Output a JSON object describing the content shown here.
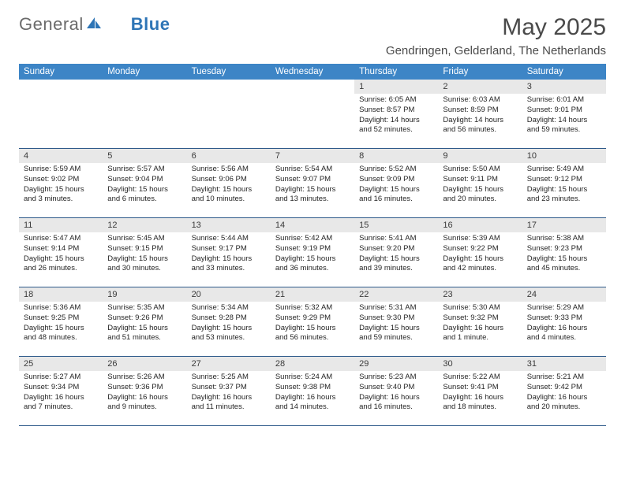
{
  "brand": {
    "part1": "General",
    "part2": "Blue",
    "logo_color": "#2e75b6"
  },
  "title": "May 2025",
  "location": "Gendringen, Gelderland, The Netherlands",
  "colors": {
    "header_bg": "#3d85c6",
    "header_text": "#ffffff",
    "daynum_bg": "#e8e8e8",
    "border": "#2e5a8a",
    "text": "#252525"
  },
  "weekdays": [
    "Sunday",
    "Monday",
    "Tuesday",
    "Wednesday",
    "Thursday",
    "Friday",
    "Saturday"
  ],
  "weeks": [
    [
      null,
      null,
      null,
      null,
      {
        "n": "1",
        "sr": "6:05 AM",
        "ss": "8:57 PM",
        "dl": "14 hours and 52 minutes."
      },
      {
        "n": "2",
        "sr": "6:03 AM",
        "ss": "8:59 PM",
        "dl": "14 hours and 56 minutes."
      },
      {
        "n": "3",
        "sr": "6:01 AM",
        "ss": "9:01 PM",
        "dl": "14 hours and 59 minutes."
      }
    ],
    [
      {
        "n": "4",
        "sr": "5:59 AM",
        "ss": "9:02 PM",
        "dl": "15 hours and 3 minutes."
      },
      {
        "n": "5",
        "sr": "5:57 AM",
        "ss": "9:04 PM",
        "dl": "15 hours and 6 minutes."
      },
      {
        "n": "6",
        "sr": "5:56 AM",
        "ss": "9:06 PM",
        "dl": "15 hours and 10 minutes."
      },
      {
        "n": "7",
        "sr": "5:54 AM",
        "ss": "9:07 PM",
        "dl": "15 hours and 13 minutes."
      },
      {
        "n": "8",
        "sr": "5:52 AM",
        "ss": "9:09 PM",
        "dl": "15 hours and 16 minutes."
      },
      {
        "n": "9",
        "sr": "5:50 AM",
        "ss": "9:11 PM",
        "dl": "15 hours and 20 minutes."
      },
      {
        "n": "10",
        "sr": "5:49 AM",
        "ss": "9:12 PM",
        "dl": "15 hours and 23 minutes."
      }
    ],
    [
      {
        "n": "11",
        "sr": "5:47 AM",
        "ss": "9:14 PM",
        "dl": "15 hours and 26 minutes."
      },
      {
        "n": "12",
        "sr": "5:45 AM",
        "ss": "9:15 PM",
        "dl": "15 hours and 30 minutes."
      },
      {
        "n": "13",
        "sr": "5:44 AM",
        "ss": "9:17 PM",
        "dl": "15 hours and 33 minutes."
      },
      {
        "n": "14",
        "sr": "5:42 AM",
        "ss": "9:19 PM",
        "dl": "15 hours and 36 minutes."
      },
      {
        "n": "15",
        "sr": "5:41 AM",
        "ss": "9:20 PM",
        "dl": "15 hours and 39 minutes."
      },
      {
        "n": "16",
        "sr": "5:39 AM",
        "ss": "9:22 PM",
        "dl": "15 hours and 42 minutes."
      },
      {
        "n": "17",
        "sr": "5:38 AM",
        "ss": "9:23 PM",
        "dl": "15 hours and 45 minutes."
      }
    ],
    [
      {
        "n": "18",
        "sr": "5:36 AM",
        "ss": "9:25 PM",
        "dl": "15 hours and 48 minutes."
      },
      {
        "n": "19",
        "sr": "5:35 AM",
        "ss": "9:26 PM",
        "dl": "15 hours and 51 minutes."
      },
      {
        "n": "20",
        "sr": "5:34 AM",
        "ss": "9:28 PM",
        "dl": "15 hours and 53 minutes."
      },
      {
        "n": "21",
        "sr": "5:32 AM",
        "ss": "9:29 PM",
        "dl": "15 hours and 56 minutes."
      },
      {
        "n": "22",
        "sr": "5:31 AM",
        "ss": "9:30 PM",
        "dl": "15 hours and 59 minutes."
      },
      {
        "n": "23",
        "sr": "5:30 AM",
        "ss": "9:32 PM",
        "dl": "16 hours and 1 minute."
      },
      {
        "n": "24",
        "sr": "5:29 AM",
        "ss": "9:33 PM",
        "dl": "16 hours and 4 minutes."
      }
    ],
    [
      {
        "n": "25",
        "sr": "5:27 AM",
        "ss": "9:34 PM",
        "dl": "16 hours and 7 minutes."
      },
      {
        "n": "26",
        "sr": "5:26 AM",
        "ss": "9:36 PM",
        "dl": "16 hours and 9 minutes."
      },
      {
        "n": "27",
        "sr": "5:25 AM",
        "ss": "9:37 PM",
        "dl": "16 hours and 11 minutes."
      },
      {
        "n": "28",
        "sr": "5:24 AM",
        "ss": "9:38 PM",
        "dl": "16 hours and 14 minutes."
      },
      {
        "n": "29",
        "sr": "5:23 AM",
        "ss": "9:40 PM",
        "dl": "16 hours and 16 minutes."
      },
      {
        "n": "30",
        "sr": "5:22 AM",
        "ss": "9:41 PM",
        "dl": "16 hours and 18 minutes."
      },
      {
        "n": "31",
        "sr": "5:21 AM",
        "ss": "9:42 PM",
        "dl": "16 hours and 20 minutes."
      }
    ]
  ],
  "labels": {
    "sunrise": "Sunrise:",
    "sunset": "Sunset:",
    "daylight": "Daylight:"
  }
}
